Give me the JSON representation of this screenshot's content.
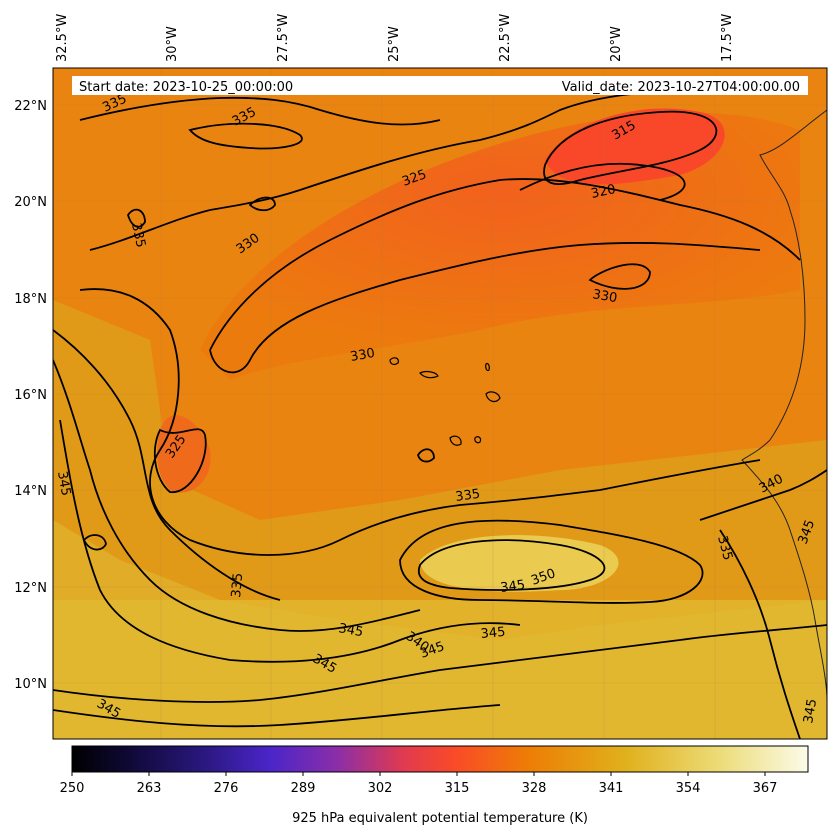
{
  "header": {
    "start_date": "Start date: 2023-10-25_00:00:00",
    "valid_date": "Valid_date: 2023-10-27T04:00:00.00"
  },
  "map": {
    "lon_labels": [
      "32.5°W",
      "30°W",
      "27.5°W",
      "25°W",
      "22.5°W",
      "20°W",
      "17.5°W"
    ],
    "lat_labels": [
      "22°N",
      "20°N",
      "18°N",
      "16°N",
      "14°N",
      "12°N",
      "10°N"
    ],
    "contour_labels": [
      {
        "text": "335"
      },
      {
        "text": "335"
      },
      {
        "text": "325"
      },
      {
        "text": "315"
      },
      {
        "text": "320"
      },
      {
        "text": "335"
      },
      {
        "text": "330"
      },
      {
        "text": "330"
      },
      {
        "text": "330"
      },
      {
        "text": "325"
      },
      {
        "text": "345"
      },
      {
        "text": "335"
      },
      {
        "text": "340"
      },
      {
        "text": "335"
      },
      {
        "text": "345"
      },
      {
        "text": "345"
      },
      {
        "text": "350"
      },
      {
        "text": "335"
      },
      {
        "text": "345"
      },
      {
        "text": "345"
      },
      {
        "text": "340"
      },
      {
        "text": "345"
      },
      {
        "text": "345"
      },
      {
        "text": "345"
      },
      {
        "text": "345"
      }
    ]
  },
  "colorbar": {
    "ticks": [
      "250",
      "263",
      "276",
      "289",
      "302",
      "315",
      "328",
      "341",
      "354",
      "367"
    ],
    "label": "925 hPa equivalent potential temperature (K)"
  }
}
